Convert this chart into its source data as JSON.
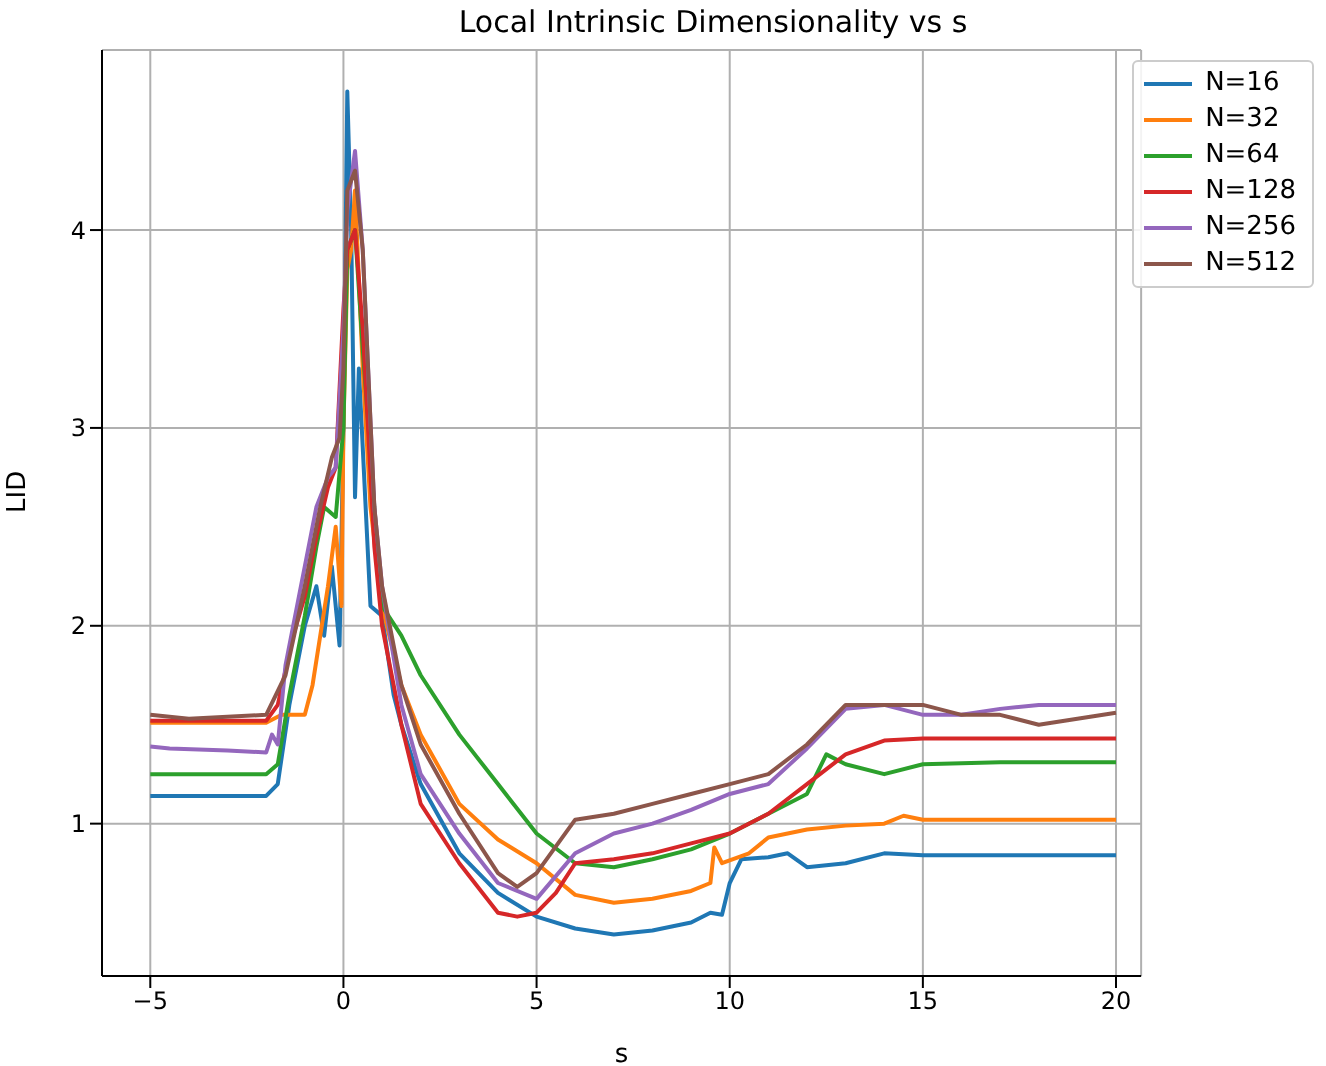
{
  "chart_data": {
    "type": "line",
    "title": "Local Intrinsic Dimensionality vs s",
    "xlabel": "s",
    "ylabel": "LID",
    "xlim": [
      -6.25,
      20.65
    ],
    "ylim": [
      0.23,
      4.91
    ],
    "xticks": [
      {
        "value": -5,
        "label": "−5"
      },
      0,
      5,
      10,
      15,
      20
    ],
    "yticks": [
      1,
      2,
      3,
      4
    ],
    "grid": true,
    "legend": "top right",
    "line_style": "solid",
    "marker": "none",
    "series": [
      {
        "name": "N=16",
        "color": "#1f77b4",
        "x": [
          -5,
          -2,
          -1.7,
          -1.4,
          -1,
          -0.7,
          -0.5,
          -0.3,
          -0.1,
          0,
          0.1,
          0.2,
          0.3,
          0.4,
          0.5,
          0.7,
          1,
          1.3,
          1.5,
          2,
          3,
          4,
          5,
          6,
          7,
          8,
          9,
          9.5,
          9.8,
          10,
          10.3,
          11,
          11.5,
          12,
          13,
          14,
          15,
          17,
          20
        ],
        "values": [
          1.14,
          1.14,
          1.2,
          1.6,
          2.0,
          2.2,
          1.95,
          2.3,
          1.9,
          3.0,
          4.7,
          4.0,
          2.65,
          3.3,
          2.9,
          2.1,
          2.05,
          1.65,
          1.5,
          1.2,
          0.85,
          0.65,
          0.53,
          0.47,
          0.44,
          0.46,
          0.5,
          0.55,
          0.54,
          0.7,
          0.82,
          0.83,
          0.85,
          0.78,
          0.8,
          0.85,
          0.84,
          0.84,
          0.84
        ]
      },
      {
        "name": "N=32",
        "color": "#ff7f0e",
        "x": [
          -5,
          -2,
          -1.6,
          -1,
          -0.8,
          -0.4,
          -0.2,
          -0.05,
          0,
          0.1,
          0.2,
          0.3,
          0.5,
          0.7,
          1,
          1.5,
          2,
          3,
          4,
          5,
          6,
          7,
          8,
          9,
          9.5,
          9.6,
          9.8,
          10.5,
          11,
          12,
          13,
          14,
          14.5,
          15,
          17,
          20
        ],
        "values": [
          1.51,
          1.51,
          1.55,
          1.55,
          1.7,
          2.2,
          2.5,
          2.1,
          3.0,
          3.8,
          3.9,
          4.2,
          3.3,
          2.6,
          2.1,
          1.7,
          1.45,
          1.1,
          0.92,
          0.8,
          0.64,
          0.6,
          0.62,
          0.66,
          0.7,
          0.88,
          0.8,
          0.85,
          0.93,
          0.97,
          0.99,
          1.0,
          1.04,
          1.02,
          1.02,
          1.02
        ]
      },
      {
        "name": "N=64",
        "color": "#2ca02c",
        "x": [
          -5,
          -2,
          -1.7,
          -1.4,
          -1,
          -0.7,
          -0.5,
          -0.2,
          0,
          0.1,
          0.3,
          0.5,
          0.8,
          1,
          1.5,
          2,
          3,
          4,
          5,
          6,
          7,
          8,
          9,
          10,
          11,
          12,
          12.5,
          13,
          14,
          15,
          17,
          20
        ],
        "values": [
          1.25,
          1.25,
          1.3,
          1.65,
          2.05,
          2.4,
          2.6,
          2.55,
          3.0,
          3.9,
          4.0,
          3.4,
          2.6,
          2.1,
          1.95,
          1.75,
          1.45,
          1.2,
          0.95,
          0.8,
          0.78,
          0.82,
          0.87,
          0.95,
          1.05,
          1.15,
          1.35,
          1.3,
          1.25,
          1.3,
          1.31,
          1.31
        ]
      },
      {
        "name": "N=128",
        "color": "#d62728",
        "x": [
          -5,
          -2,
          -1.7,
          -1.3,
          -1,
          -0.7,
          -0.4,
          -0.2,
          0,
          0.1,
          0.2,
          0.3,
          0.5,
          0.8,
          1,
          1.5,
          2,
          3,
          4,
          4.5,
          5,
          5.5,
          6,
          7,
          8,
          9,
          10,
          11,
          12,
          13,
          14,
          15,
          17,
          20
        ],
        "values": [
          1.52,
          1.52,
          1.6,
          1.95,
          2.15,
          2.45,
          2.7,
          2.8,
          3.6,
          3.9,
          3.95,
          4.0,
          3.5,
          2.4,
          2.0,
          1.5,
          1.1,
          0.8,
          0.55,
          0.53,
          0.55,
          0.65,
          0.8,
          0.82,
          0.85,
          0.9,
          0.95,
          1.05,
          1.2,
          1.35,
          1.42,
          1.43,
          1.43,
          1.43
        ]
      },
      {
        "name": "N=256",
        "color": "#9467bd",
        "x": [
          -5,
          -4.5,
          -3,
          -2,
          -1.85,
          -1.7,
          -1.5,
          -1,
          -0.7,
          -0.4,
          -0.2,
          0,
          0.1,
          0.3,
          0.5,
          0.8,
          1,
          1.5,
          2,
          3,
          4,
          5,
          6,
          7,
          8,
          9,
          10,
          11,
          12,
          13,
          14,
          15,
          16,
          17,
          18,
          20
        ],
        "values": [
          1.39,
          1.38,
          1.37,
          1.36,
          1.45,
          1.4,
          1.8,
          2.3,
          2.6,
          2.75,
          2.8,
          3.5,
          4.1,
          4.4,
          3.9,
          2.6,
          2.2,
          1.6,
          1.25,
          0.95,
          0.7,
          0.62,
          0.85,
          0.95,
          1.0,
          1.07,
          1.15,
          1.2,
          1.38,
          1.58,
          1.6,
          1.55,
          1.55,
          1.58,
          1.6,
          1.6
        ]
      },
      {
        "name": "N=512",
        "color": "#8c564b",
        "x": [
          -5,
          -4,
          -2,
          -1.5,
          -1,
          -0.6,
          -0.3,
          -0.1,
          0,
          0.1,
          0.3,
          0.5,
          0.8,
          1,
          1.5,
          2,
          3,
          4,
          4.5,
          5,
          6,
          7,
          8,
          9,
          10,
          11,
          12,
          13,
          14,
          15,
          16,
          17,
          18,
          20
        ],
        "values": [
          1.55,
          1.53,
          1.55,
          1.75,
          2.2,
          2.6,
          2.85,
          2.95,
          3.3,
          4.2,
          4.3,
          3.9,
          2.6,
          2.2,
          1.7,
          1.4,
          1.05,
          0.75,
          0.68,
          0.75,
          1.02,
          1.05,
          1.1,
          1.15,
          1.2,
          1.25,
          1.4,
          1.6,
          1.6,
          1.6,
          1.55,
          1.55,
          1.5,
          1.56
        ]
      }
    ]
  }
}
